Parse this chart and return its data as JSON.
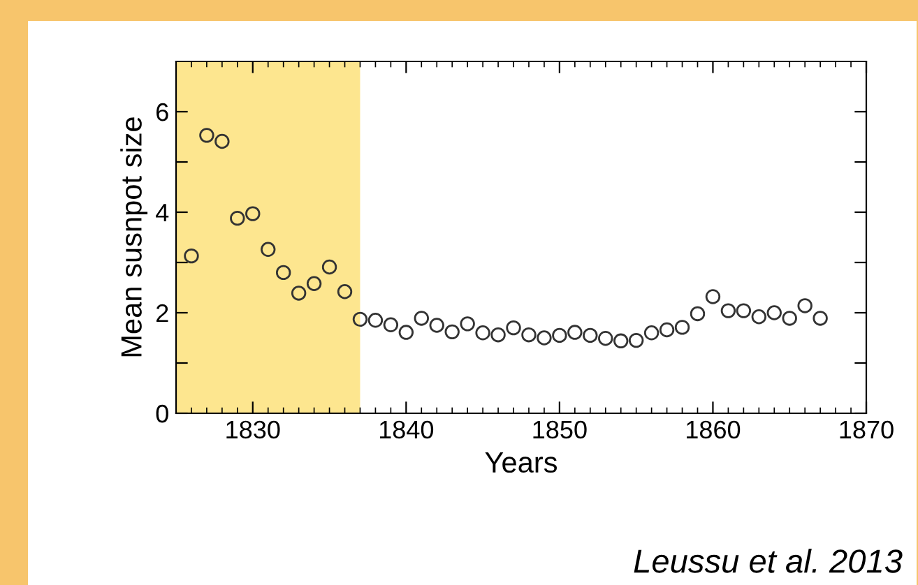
{
  "chart_data": {
    "type": "scatter",
    "xlabel": "Years",
    "ylabel": "Mean susnpot size",
    "annotations": [
      "Leussu et al. 2013"
    ],
    "x": [
      1826,
      1827,
      1828,
      1829,
      1830,
      1831,
      1832,
      1833,
      1834,
      1835,
      1836,
      1837,
      1838,
      1839,
      1840,
      1841,
      1842,
      1843,
      1844,
      1845,
      1846,
      1847,
      1848,
      1849,
      1850,
      1851,
      1852,
      1853,
      1854,
      1855,
      1856,
      1857,
      1858,
      1859,
      1860,
      1861,
      1862,
      1863,
      1864,
      1865,
      1866,
      1867
    ],
    "series": [
      {
        "color": "#333333",
        "values": [
          3.13,
          5.53,
          5.41,
          3.88,
          3.97,
          3.26,
          2.8,
          2.39,
          2.58,
          2.91,
          2.42,
          1.87,
          1.85,
          1.76,
          1.61,
          1.89,
          1.75,
          1.62,
          1.78,
          1.6,
          1.56,
          1.7,
          1.56,
          1.5,
          1.55,
          1.61,
          1.55,
          1.49,
          1.44,
          1.45,
          1.6,
          1.66,
          1.71,
          1.98,
          2.32,
          2.04,
          2.04,
          1.92,
          2.0,
          1.89,
          2.14,
          1.89
        ]
      }
    ],
    "marker": "circle",
    "xlim": [
      1825,
      1870
    ],
    "ylim": [
      0,
      7
    ],
    "xticks": [
      1830,
      1840,
      1850,
      1860,
      1870
    ],
    "yticks": [
      0,
      {
        "value": 1,
        "label": null
      },
      2,
      {
        "value": 3,
        "label": null
      },
      4,
      {
        "value": 5,
        "label": null
      },
      6
    ],
    "bands": [
      {
        "axis": "x",
        "from": 1825,
        "to": 1837,
        "label": null,
        "color": "#fde68f"
      }
    ],
    "grid": false,
    "legend": false
  }
}
